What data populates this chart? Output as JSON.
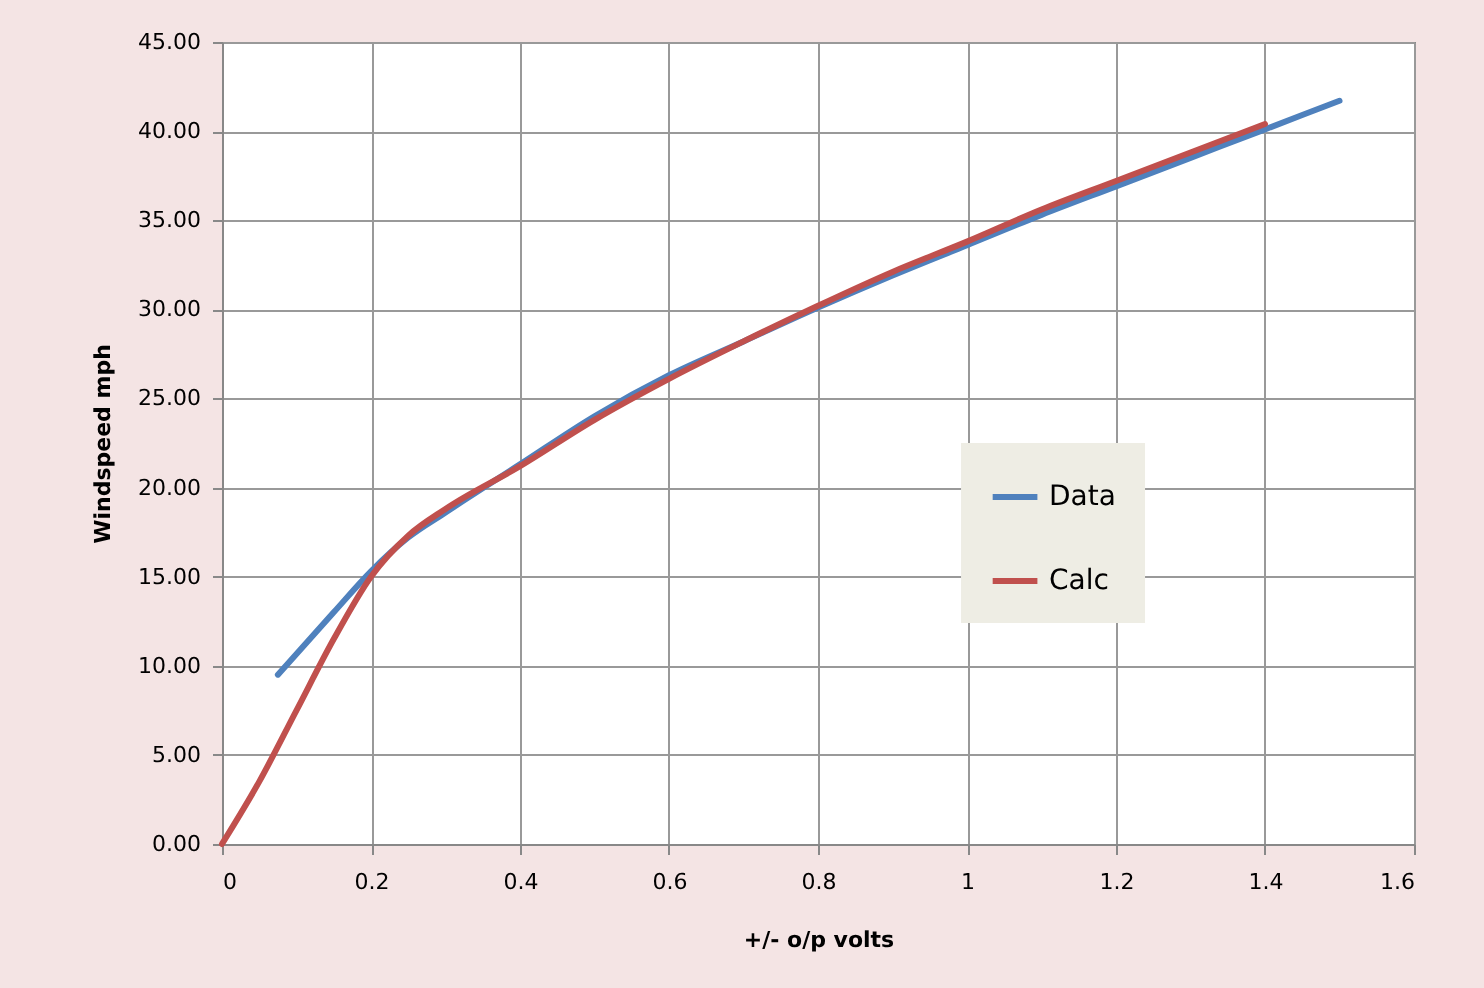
{
  "chart_data": {
    "type": "line",
    "xlabel": "+/- o/p volts",
    "ylabel": "Windspeed mph",
    "series": [
      {
        "name": "Data",
        "color": "#4f81bd",
        "x": [
          0.075,
          0.15,
          0.2,
          0.25,
          0.3,
          0.4,
          0.5,
          0.6,
          0.7,
          0.8,
          0.9,
          1.0,
          1.1,
          1.2,
          1.3,
          1.4,
          1.5
        ],
        "values": [
          9.5,
          13.0,
          15.3,
          17.2,
          18.6,
          21.3,
          24.0,
          26.3,
          28.2,
          30.1,
          31.9,
          33.6,
          35.3,
          36.9,
          38.5,
          40.1,
          41.7
        ]
      },
      {
        "name": "Calc",
        "color": "#c0504d",
        "x": [
          0,
          0.05,
          0.1,
          0.15,
          0.2,
          0.25,
          0.3,
          0.4,
          0.5,
          0.6,
          0.7,
          0.8,
          0.9,
          1.0,
          1.1,
          1.2,
          1.3,
          1.4
        ],
        "values": [
          0,
          3.5,
          7.5,
          11.5,
          15.0,
          17.3,
          18.8,
          21.2,
          23.8,
          26.1,
          28.2,
          30.2,
          32.1,
          33.8,
          35.6,
          37.2,
          38.8,
          40.4
        ]
      }
    ],
    "xlim": [
      0,
      1.6
    ],
    "xticks": [
      0,
      0.2,
      0.4,
      0.6,
      0.8,
      1,
      1.2,
      1.4,
      1.6
    ],
    "ylim": [
      0,
      45
    ],
    "yticks": [
      {
        "value": 0,
        "label": "0.00"
      },
      {
        "value": 5,
        "label": "5.00"
      },
      {
        "value": 10,
        "label": "10.00"
      },
      {
        "value": 15,
        "label": "15.00"
      },
      {
        "value": 20,
        "label": "20.00"
      },
      {
        "value": 25,
        "label": "25.00"
      },
      {
        "value": 30,
        "label": "30.00"
      },
      {
        "value": 35,
        "label": "35.00"
      },
      {
        "value": 40,
        "label": "40.00"
      },
      {
        "value": 45,
        "label": "45.00"
      }
    ],
    "grid": true,
    "legend": "right",
    "marker": "none",
    "line_style": "solid"
  }
}
